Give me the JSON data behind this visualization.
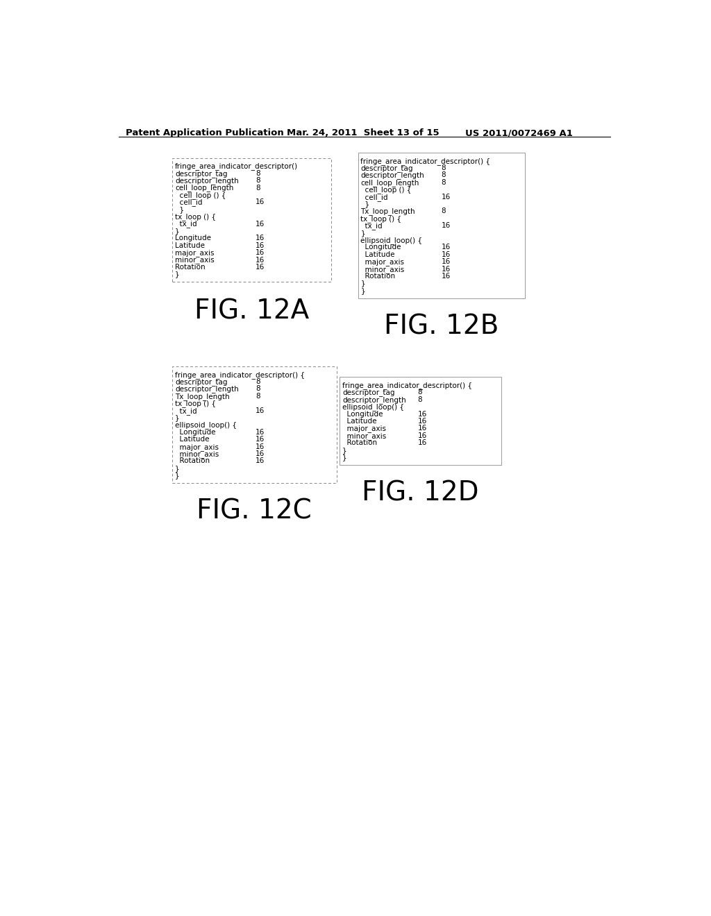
{
  "header_left": "Patent Application Publication",
  "header_mid": "Mar. 24, 2011  Sheet 13 of 15",
  "header_right": "US 2011/0072469 A1",
  "bg_color": "#ffffff",
  "fig12a_label": "FIG. 12A",
  "fig12b_label": "FIG. 12B",
  "fig12c_label": "FIG. 12C",
  "fig12d_label": "FIG. 12D",
  "fig12a_lines": [
    [
      "fringe_area_indicator_descriptor()",
      ""
    ],
    [
      "descriptor_tag",
      "8"
    ],
    [
      "descriptor_length",
      "8"
    ],
    [
      "cell_loop_length",
      "8"
    ],
    [
      "  cell_loop () {",
      ""
    ],
    [
      "  cell_id",
      "16"
    ],
    [
      "  }",
      ""
    ],
    [
      "tx_loop () {",
      ""
    ],
    [
      "  tx_id",
      "16"
    ],
    [
      "}",
      ""
    ],
    [
      "Longitude",
      "16"
    ],
    [
      "Latitude",
      "16"
    ],
    [
      "major_axis",
      "16"
    ],
    [
      "minor_axis",
      "16"
    ],
    [
      "Rotation",
      "16"
    ],
    [
      "}",
      ""
    ]
  ],
  "fig12b_lines": [
    [
      "fringe_area_indicator_descriptor() {",
      ""
    ],
    [
      "descriptor_tag",
      "8"
    ],
    [
      "descriptor_length",
      "8"
    ],
    [
      "cell_loop_length",
      "8"
    ],
    [
      "  cell_loop () {",
      ""
    ],
    [
      "  cell_id",
      "16"
    ],
    [
      "  }",
      ""
    ],
    [
      "Tx_loop_length",
      "8"
    ],
    [
      "tx_loop () {",
      ""
    ],
    [
      "  tx_id",
      "16"
    ],
    [
      "}",
      ""
    ],
    [
      "ellipsoid_loop() {",
      ""
    ],
    [
      "  Longitude",
      "16"
    ],
    [
      "  Latitude",
      "16"
    ],
    [
      "  major_axis",
      "16"
    ],
    [
      "  minor_axis",
      "16"
    ],
    [
      "  Rotation",
      "16"
    ],
    [
      "}",
      ""
    ],
    [
      "}",
      ""
    ]
  ],
  "fig12c_lines": [
    [
      "fringe_area_indicator_descriptor() {",
      ""
    ],
    [
      "descriptor_tag",
      "8"
    ],
    [
      "descriptor_length",
      "8"
    ],
    [
      "Tx_loop_length",
      "8"
    ],
    [
      "tx_loop () {",
      ""
    ],
    [
      "  tx_id",
      "16"
    ],
    [
      "}",
      ""
    ],
    [
      "ellipsoid_loop() {",
      ""
    ],
    [
      "  Longitude",
      "16"
    ],
    [
      "  Latitude",
      "16"
    ],
    [
      "  major_axis",
      "16"
    ],
    [
      "  minor_axis",
      "16"
    ],
    [
      "  Rotation",
      "16"
    ],
    [
      "}",
      ""
    ],
    [
      "}",
      ""
    ]
  ],
  "fig12d_lines": [
    [
      "fringe_area_indicator_descriptor() {",
      ""
    ],
    [
      "descriptor_tag",
      "8"
    ],
    [
      "descriptor_length",
      "8"
    ],
    [
      "ellipsoid_loop() {",
      ""
    ],
    [
      "  Longitude",
      "16"
    ],
    [
      "  Latitude",
      "16"
    ],
    [
      "  major_axis",
      "16"
    ],
    [
      "  minor_axis",
      "16"
    ],
    [
      "  Rotation",
      "16"
    ],
    [
      "}",
      ""
    ],
    [
      "}",
      ""
    ]
  ]
}
